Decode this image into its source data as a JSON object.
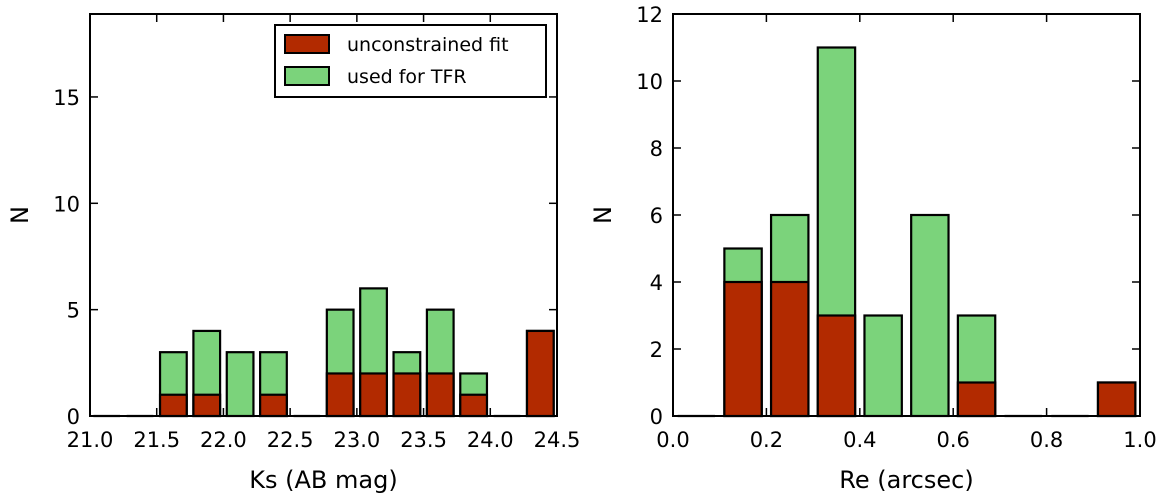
{
  "colors": {
    "unconstrained": "#B22A00",
    "used": "#7BD37B",
    "edge": "#000000"
  },
  "legend": {
    "unconstrained_label": "unconstrained fit",
    "used_label": "used for TFR"
  },
  "chart_data": [
    {
      "type": "bar",
      "title": "",
      "xlabel": "Ks (AB mag)",
      "ylabel": "N",
      "xlim": [
        21.0,
        24.5
      ],
      "ylim": [
        0,
        18.9
      ],
      "xticks": [
        21.0,
        21.5,
        22.0,
        22.5,
        23.0,
        23.5,
        24.0,
        24.5
      ],
      "xtick_labels": [
        "21.0",
        "21.5",
        "22.0",
        "22.5",
        "23.0",
        "23.5",
        "24.0",
        "24.5"
      ],
      "yticks": [
        0,
        5,
        10,
        15
      ],
      "ytick_labels": [
        "0",
        "5",
        "10",
        "15"
      ],
      "legend_position": "top-right",
      "bins": [
        [
          21.0,
          21.25
        ],
        [
          21.25,
          21.5
        ],
        [
          21.5,
          21.75
        ],
        [
          21.75,
          22.0
        ],
        [
          22.0,
          22.25
        ],
        [
          22.25,
          22.5
        ],
        [
          22.5,
          22.75
        ],
        [
          22.75,
          23.0
        ],
        [
          23.0,
          23.25
        ],
        [
          23.25,
          23.5
        ],
        [
          23.5,
          23.75
        ],
        [
          23.75,
          24.0
        ],
        [
          24.0,
          24.25
        ],
        [
          24.25,
          24.5
        ]
      ],
      "series": [
        {
          "name": "unconstrained fit",
          "values": [
            0,
            0,
            1,
            1,
            0,
            1,
            0,
            2,
            2,
            2,
            2,
            1,
            0,
            4
          ]
        },
        {
          "name": "used for TFR",
          "values": [
            0,
            0,
            3,
            4,
            3,
            3,
            0,
            5,
            6,
            3,
            5,
            2,
            0,
            4
          ]
        }
      ]
    },
    {
      "type": "bar",
      "title": "",
      "xlabel": "Re (arcsec)",
      "ylabel": "N",
      "xlim": [
        0.0,
        1.0
      ],
      "ylim": [
        0,
        12
      ],
      "xticks": [
        0.0,
        0.2,
        0.4,
        0.6,
        0.8,
        1.0
      ],
      "xtick_labels": [
        "0.0",
        "0.2",
        "0.4",
        "0.6",
        "0.8",
        "1.0"
      ],
      "yticks": [
        0,
        2,
        4,
        6,
        8,
        10,
        12
      ],
      "ytick_labels": [
        "0",
        "2",
        "4",
        "6",
        "8",
        "10",
        "12"
      ],
      "bins": [
        [
          0.0,
          0.1
        ],
        [
          0.1,
          0.2
        ],
        [
          0.2,
          0.3
        ],
        [
          0.3,
          0.4
        ],
        [
          0.4,
          0.5
        ],
        [
          0.5,
          0.6
        ],
        [
          0.6,
          0.7
        ],
        [
          0.7,
          0.8
        ],
        [
          0.8,
          0.9
        ],
        [
          0.9,
          1.0
        ]
      ],
      "series": [
        {
          "name": "unconstrained fit",
          "values": [
            0,
            4,
            4,
            3,
            0,
            0,
            1,
            0,
            0,
            1
          ]
        },
        {
          "name": "used for TFR",
          "values": [
            0,
            5,
            6,
            11,
            3,
            6,
            3,
            0,
            0,
            1
          ]
        }
      ]
    }
  ]
}
